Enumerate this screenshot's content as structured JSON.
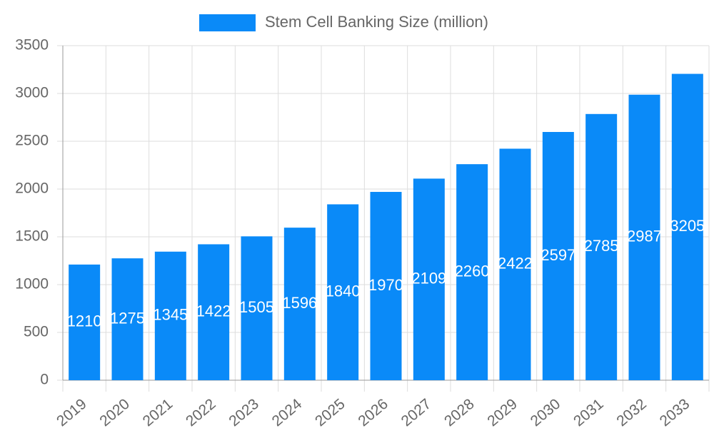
{
  "chart_data": {
    "type": "bar",
    "legend": "Stem Cell Banking Size (million)",
    "categories": [
      "2019",
      "2020",
      "2021",
      "2022",
      "2023",
      "2024",
      "2025",
      "2026",
      "2027",
      "2028",
      "2029",
      "2030",
      "2031",
      "2032",
      "2033"
    ],
    "values": [
      1210,
      1275,
      1345,
      1422,
      1505,
      1596,
      1840,
      1970,
      2109,
      2260,
      2422,
      2597,
      2785,
      2987,
      3205
    ],
    "color": "#0a8af8",
    "ylim": [
      0,
      3500
    ],
    "yticks": [
      0,
      500,
      1000,
      1500,
      2000,
      2500,
      3000,
      3500
    ],
    "grid": true
  }
}
